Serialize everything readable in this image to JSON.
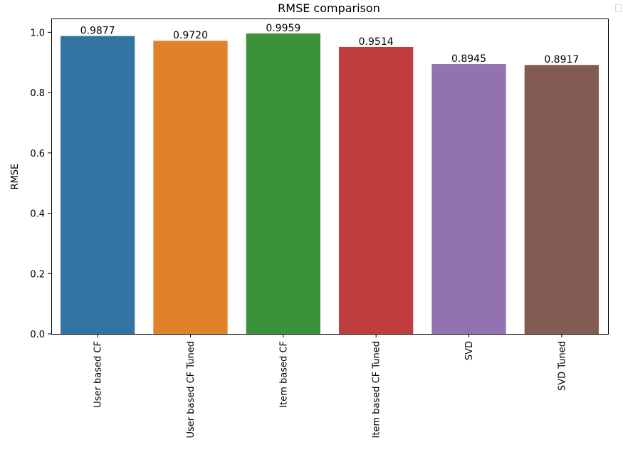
{
  "chart_data": {
    "type": "bar",
    "title": "RMSE comparison",
    "xlabel": "",
    "ylabel": "RMSE",
    "categories": [
      "User based CF",
      "User based CF Tuned",
      "Item based CF",
      "Item based CF Tuned",
      "SVD",
      "SVD Tuned"
    ],
    "values": [
      0.9877,
      0.972,
      0.9959,
      0.9514,
      0.8945,
      0.8917
    ],
    "value_labels": [
      "0.9877",
      "0.9720",
      "0.9959",
      "0.9514",
      "0.8945",
      "0.8917"
    ],
    "colors": [
      "#3274a1",
      "#e1812c",
      "#3a923a",
      "#c03d3e",
      "#9372b2",
      "#845b53"
    ],
    "ylim": [
      0,
      1.0457
    ],
    "yticks": [
      0.0,
      0.2,
      0.4,
      0.6,
      0.8,
      1.0
    ],
    "ytick_labels": [
      "0.0",
      "0.2",
      "0.4",
      "0.6",
      "0.8",
      "1.0"
    ],
    "grid": false,
    "legend": "none"
  }
}
